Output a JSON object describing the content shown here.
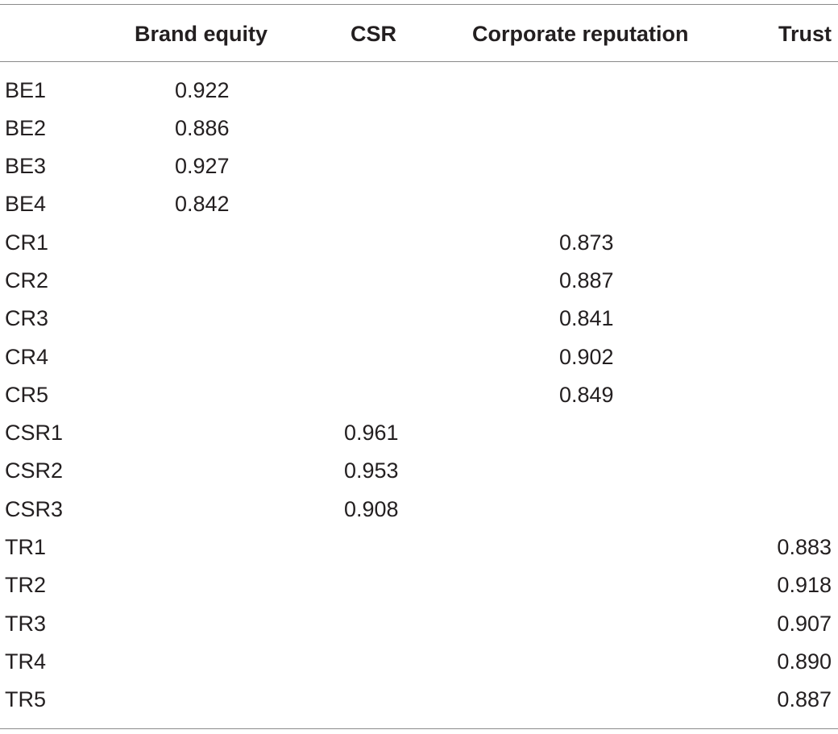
{
  "table": {
    "headers": {
      "label": "",
      "brand_equity": "Brand equity",
      "csr": "CSR",
      "corporate_reputation": "Corporate reputation",
      "trust": "Trust"
    },
    "rows": [
      {
        "label": "BE1",
        "brand_equity": "0.922",
        "csr": "",
        "corporate_reputation": "",
        "trust": ""
      },
      {
        "label": "BE2",
        "brand_equity": "0.886",
        "csr": "",
        "corporate_reputation": "",
        "trust": ""
      },
      {
        "label": "BE3",
        "brand_equity": "0.927",
        "csr": "",
        "corporate_reputation": "",
        "trust": ""
      },
      {
        "label": "BE4",
        "brand_equity": "0.842",
        "csr": "",
        "corporate_reputation": "",
        "trust": ""
      },
      {
        "label": "CR1",
        "brand_equity": "",
        "csr": "",
        "corporate_reputation": "0.873",
        "trust": ""
      },
      {
        "label": "CR2",
        "brand_equity": "",
        "csr": "",
        "corporate_reputation": "0.887",
        "trust": ""
      },
      {
        "label": "CR3",
        "brand_equity": "",
        "csr": "",
        "corporate_reputation": "0.841",
        "trust": ""
      },
      {
        "label": "CR4",
        "brand_equity": "",
        "csr": "",
        "corporate_reputation": "0.902",
        "trust": ""
      },
      {
        "label": "CR5",
        "brand_equity": "",
        "csr": "",
        "corporate_reputation": "0.849",
        "trust": ""
      },
      {
        "label": "CSR1",
        "brand_equity": "",
        "csr": "0.961",
        "corporate_reputation": "",
        "trust": ""
      },
      {
        "label": "CSR2",
        "brand_equity": "",
        "csr": "0.953",
        "corporate_reputation": "",
        "trust": ""
      },
      {
        "label": "CSR3",
        "brand_equity": "",
        "csr": "0.908",
        "corporate_reputation": "",
        "trust": ""
      },
      {
        "label": "TR1",
        "brand_equity": "",
        "csr": "",
        "corporate_reputation": "",
        "trust": "0.883"
      },
      {
        "label": "TR2",
        "brand_equity": "",
        "csr": "",
        "corporate_reputation": "",
        "trust": "0.918"
      },
      {
        "label": "TR3",
        "brand_equity": "",
        "csr": "",
        "corporate_reputation": "",
        "trust": "0.907"
      },
      {
        "label": "TR4",
        "brand_equity": "",
        "csr": "",
        "corporate_reputation": "",
        "trust": "0.890"
      },
      {
        "label": "TR5",
        "brand_equity": "",
        "csr": "",
        "corporate_reputation": "",
        "trust": "0.887"
      }
    ]
  },
  "colors": {
    "text": "#231f20",
    "rule": "#8a8a8a",
    "background": "#ffffff"
  }
}
